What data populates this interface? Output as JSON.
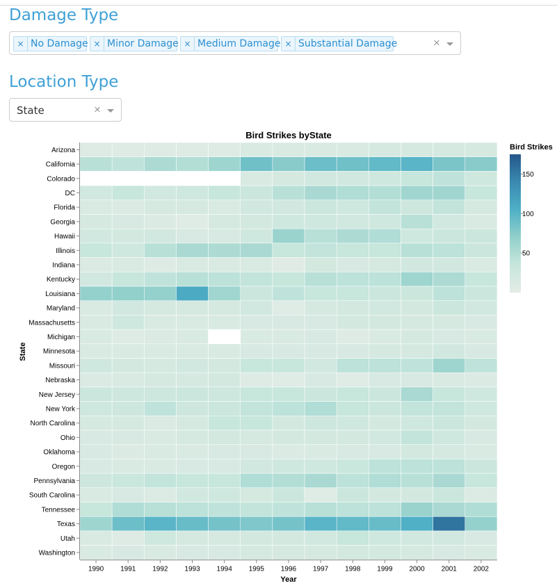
{
  "filters": {
    "damage_type": {
      "title": "Damage Type",
      "selected": [
        {
          "label": "No Damage",
          "remove_icon": "×"
        },
        {
          "label": "Minor Damage",
          "remove_icon": "×"
        },
        {
          "label": "Medium Damage",
          "remove_icon": "×"
        },
        {
          "label": "Substantial Damage",
          "remove_icon": "×"
        }
      ],
      "clear_icon": "×"
    },
    "location_type": {
      "title": "Location Type",
      "value": "State",
      "clear_icon": "×"
    }
  },
  "chart_data": {
    "type": "heatmap",
    "title": "Bird Strikes byState",
    "xlabel": "Year",
    "ylabel": "State",
    "legend": {
      "title": "Bird Strikes",
      "placement": "right",
      "ticks": [
        50,
        100,
        150
      ],
      "domain": [
        0,
        175
      ]
    },
    "color_range": [
      "#e3ece6",
      "#c7e6dc",
      "#92d0cb",
      "#4fb0c6",
      "#3989b0",
      "#25578b"
    ],
    "grid": false,
    "x": [
      "1990",
      "1991",
      "1992",
      "1993",
      "1994",
      "1995",
      "1996",
      "1997",
      "1998",
      "1999",
      "2000",
      "2001",
      "2002"
    ],
    "y": [
      "Arizona",
      "California",
      "Colorado",
      "DC",
      "Florida",
      "Georgia",
      "Hawaii",
      "Illinois",
      "Indiana",
      "Kentucky",
      "Louisiana",
      "Maryland",
      "Massachusetts",
      "Michigan",
      "Minnesota",
      "Missouri",
      "Nebraska",
      "New Jersey",
      "New York",
      "North Carolina",
      "Ohio",
      "Oklahoma",
      "Oregon",
      "Pennsylvania",
      "South Carolina",
      "Tennessee",
      "Texas",
      "Utah",
      "Washington"
    ],
    "values": [
      [
        8,
        8,
        8,
        8,
        8,
        12,
        12,
        14,
        14,
        18,
        18,
        18,
        18
      ],
      [
        45,
        40,
        52,
        48,
        62,
        88,
        75,
        90,
        88,
        95,
        100,
        82,
        75
      ],
      [
        null,
        null,
        null,
        null,
        null,
        14,
        18,
        22,
        22,
        25,
        35,
        40,
        25
      ],
      [
        22,
        35,
        22,
        25,
        35,
        30,
        45,
        55,
        50,
        48,
        60,
        60,
        35
      ],
      [
        12,
        10,
        18,
        18,
        12,
        22,
        22,
        30,
        25,
        38,
        28,
        38,
        18
      ],
      [
        18,
        15,
        10,
        5,
        18,
        20,
        25,
        25,
        22,
        25,
        45,
        22,
        12
      ],
      [
        22,
        20,
        22,
        15,
        15,
        25,
        65,
        45,
        52,
        50,
        25,
        30,
        30
      ],
      [
        35,
        25,
        45,
        55,
        52,
        55,
        35,
        38,
        35,
        35,
        45,
        42,
        30
      ],
      [
        10,
        12,
        8,
        12,
        12,
        12,
        3,
        20,
        15,
        18,
        22,
        22,
        12
      ],
      [
        22,
        35,
        40,
        45,
        42,
        38,
        35,
        45,
        42,
        42,
        62,
        52,
        35
      ],
      [
        68,
        70,
        68,
        110,
        60,
        30,
        40,
        35,
        35,
        30,
        30,
        42,
        30
      ],
      [
        12,
        22,
        18,
        18,
        18,
        22,
        5,
        18,
        20,
        22,
        20,
        30,
        22
      ],
      [
        12,
        25,
        12,
        12,
        12,
        15,
        15,
        15,
        20,
        20,
        18,
        18,
        15
      ],
      [
        12,
        8,
        10,
        12,
        null,
        12,
        12,
        15,
        8,
        12,
        18,
        15,
        12
      ],
      [
        12,
        12,
        12,
        12,
        12,
        15,
        15,
        15,
        15,
        18,
        18,
        22,
        15
      ],
      [
        25,
        20,
        18,
        22,
        20,
        35,
        35,
        22,
        42,
        42,
        40,
        62,
        40
      ],
      [
        10,
        14,
        18,
        18,
        20,
        8,
        5,
        15,
        5,
        15,
        15,
        12,
        10
      ],
      [
        30,
        28,
        28,
        30,
        28,
        35,
        35,
        30,
        35,
        30,
        55,
        35,
        25
      ],
      [
        25,
        28,
        40,
        28,
        30,
        38,
        42,
        50,
        35,
        30,
        38,
        38,
        25
      ],
      [
        18,
        18,
        10,
        18,
        35,
        35,
        20,
        28,
        25,
        20,
        25,
        30,
        20
      ],
      [
        15,
        15,
        12,
        18,
        20,
        18,
        20,
        20,
        20,
        22,
        38,
        25,
        15
      ],
      [
        15,
        10,
        12,
        12,
        15,
        15,
        10,
        12,
        15,
        15,
        20,
        18,
        12
      ],
      [
        15,
        12,
        12,
        15,
        15,
        22,
        25,
        25,
        32,
        42,
        42,
        42,
        30
      ],
      [
        28,
        32,
        38,
        35,
        35,
        50,
        48,
        55,
        42,
        50,
        45,
        55,
        35
      ],
      [
        12,
        15,
        10,
        22,
        25,
        18,
        30,
        5,
        30,
        20,
        20,
        30,
        10
      ],
      [
        35,
        50,
        45,
        42,
        40,
        38,
        40,
        45,
        42,
        42,
        65,
        55,
        50
      ],
      [
        62,
        90,
        100,
        92,
        85,
        80,
        85,
        100,
        95,
        92,
        105,
        155,
        68
      ],
      [
        12,
        8,
        25,
        18,
        18,
        20,
        20,
        22,
        35,
        25,
        22,
        22,
        15
      ],
      [
        12,
        15,
        12,
        15,
        15,
        18,
        18,
        18,
        20,
        20,
        18,
        15,
        12
      ]
    ]
  }
}
